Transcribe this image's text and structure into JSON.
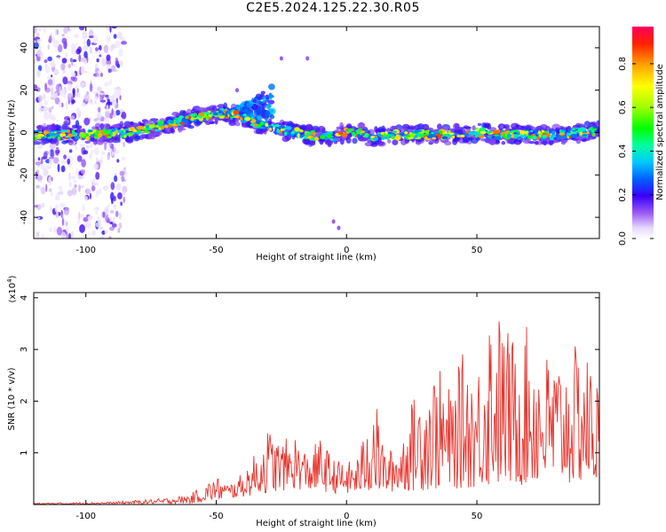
{
  "title": "C2E5.2024.125.22.30.R05",
  "chart_data": [
    {
      "type": "heatmap",
      "xlabel": "Height of straight line (km)",
      "ylabel": "Frequency (Hz)",
      "xlim": [
        -120,
        97
      ],
      "ylim": [
        -50,
        50
      ],
      "xticks": [
        -100,
        -50,
        0,
        50
      ],
      "yticks": [
        -40,
        -20,
        0,
        20,
        40
      ],
      "ridge": {
        "x": [
          -120,
          -100,
          -85,
          -75,
          -65,
          -55,
          -48,
          -42,
          -36,
          -31,
          -28,
          -24,
          -20,
          -15,
          -10,
          -5,
          0,
          5,
          10,
          20,
          30,
          40,
          50,
          60,
          70,
          80,
          90,
          97
        ],
        "y": [
          -1,
          -1,
          0,
          2,
          5,
          8,
          9,
          8,
          5,
          3,
          2,
          1,
          0,
          -1,
          -2,
          -2,
          0,
          0,
          -2,
          -1,
          -1,
          -1,
          0,
          -1,
          -1,
          -1,
          0,
          1
        ]
      },
      "branch": {
        "x": [
          -45,
          -40,
          -35,
          -32,
          -30,
          -28
        ],
        "y": [
          10,
          13,
          16,
          19,
          21,
          22
        ]
      },
      "noise_band": [
        -120,
        -85
      ],
      "colorbar": {
        "label": "Normalized spectral amplitude",
        "ticks": [
          "0.0",
          "0.2",
          "0.4",
          "0.6",
          "0.8"
        ],
        "range": [
          0,
          0.97
        ]
      }
    },
    {
      "type": "line",
      "xlabel": "Height of straight line (km)",
      "ylabel": "SNR (10 * v/v)",
      "multiplier": "(x10",
      "multiplier_exp": "4",
      "multiplier_close": ")",
      "xlim": [
        -120,
        97
      ],
      "ylim": [
        0,
        4.1
      ],
      "xticks": [
        -100,
        -50,
        0,
        50
      ],
      "yticks": [
        1,
        2,
        3,
        4
      ],
      "color": "#e8322b",
      "envelope": {
        "x": [
          -120,
          -90,
          -70,
          -60,
          -50,
          -45,
          -40,
          -35,
          -30,
          -25,
          -20,
          -15,
          -10,
          -5,
          0,
          5,
          10,
          15,
          20,
          25,
          30,
          35,
          40,
          45,
          50,
          55,
          60,
          65,
          70,
          75,
          80,
          85,
          90,
          97
        ],
        "y": [
          0.03,
          0.05,
          0.12,
          0.2,
          0.55,
          0.4,
          0.6,
          1.0,
          1.5,
          1.2,
          1.4,
          1.0,
          1.3,
          0.9,
          0.8,
          1.0,
          2.3,
          1.0,
          1.2,
          2.0,
          2.5,
          2.7,
          2.2,
          3.0,
          2.6,
          4.1,
          3.6,
          3.2,
          3.5,
          3.0,
          2.9,
          2.9,
          3.2,
          2.4
        ]
      },
      "floor": {
        "x": [
          -120,
          -60,
          -40,
          -20,
          0,
          20,
          40,
          60,
          97
        ],
        "y": [
          0.0,
          0.02,
          0.15,
          0.3,
          0.2,
          0.25,
          0.3,
          0.35,
          0.4
        ]
      },
      "points": 700,
      "seed": 17
    }
  ]
}
